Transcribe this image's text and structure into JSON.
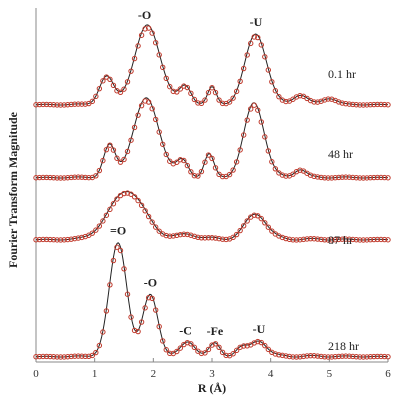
{
  "chart_data": {
    "type": "line",
    "xlabel": "R (Å)",
    "ylabel": "Fourier  Transform  Magnitude",
    "xlim": [
      0,
      6
    ],
    "x_ticks": [
      "0",
      "1",
      "2",
      "3",
      "4",
      "5",
      "6"
    ],
    "grid": false,
    "legend": "none",
    "colors": {
      "fit": "#222222",
      "data": "#c0392b"
    },
    "series": [
      {
        "name": "0.1 hr",
        "peaks": [
          {
            "r": 1.2,
            "amp": 0.35,
            "w": 0.12
          },
          {
            "r": 1.9,
            "amp": 1.0,
            "w": 0.22
          },
          {
            "r": 2.55,
            "amp": 0.22,
            "w": 0.1
          },
          {
            "r": 3.0,
            "amp": 0.2,
            "w": 0.07
          },
          {
            "r": 3.75,
            "amp": 0.9,
            "w": 0.18
          },
          {
            "r": 4.5,
            "amp": 0.12,
            "w": 0.12
          },
          {
            "r": 5.0,
            "amp": 0.08,
            "w": 0.12
          }
        ],
        "annotations": [
          {
            "text": "-O",
            "r": 1.85
          },
          {
            "text": "-U",
            "r": 3.75
          }
        ]
      },
      {
        "name": "48 hr",
        "peaks": [
          {
            "r": 1.25,
            "amp": 0.4,
            "w": 0.1
          },
          {
            "r": 1.88,
            "amp": 1.0,
            "w": 0.22
          },
          {
            "r": 2.5,
            "amp": 0.2,
            "w": 0.1
          },
          {
            "r": 2.95,
            "amp": 0.28,
            "w": 0.08
          },
          {
            "r": 3.72,
            "amp": 0.95,
            "w": 0.17
          },
          {
            "r": 4.5,
            "amp": 0.1,
            "w": 0.1
          }
        ],
        "annotations": []
      },
      {
        "name": "87 hr",
        "peaks": [
          {
            "r": 1.55,
            "amp": 0.62,
            "w": 0.3
          },
          {
            "r": 2.6,
            "amp": 0.06,
            "w": 0.15
          },
          {
            "r": 3.75,
            "amp": 0.32,
            "w": 0.18
          }
        ],
        "annotations": []
      },
      {
        "name": "218 hr",
        "peaks": [
          {
            "r": 1.4,
            "amp": 1.45,
            "w": 0.15
          },
          {
            "r": 1.95,
            "amp": 0.78,
            "w": 0.13
          },
          {
            "r": 2.6,
            "amp": 0.18,
            "w": 0.12
          },
          {
            "r": 3.05,
            "amp": 0.15,
            "w": 0.09
          },
          {
            "r": 3.5,
            "amp": 0.1,
            "w": 0.1
          },
          {
            "r": 3.8,
            "amp": 0.2,
            "w": 0.13
          }
        ],
        "annotations": [
          {
            "text": "=O",
            "r": 1.4
          },
          {
            "text": "-O",
            "r": 1.95
          },
          {
            "text": "-C",
            "r": 2.55
          },
          {
            "text": "-Fe",
            "r": 3.05
          },
          {
            "text": "-U",
            "r": 3.8
          }
        ]
      }
    ]
  }
}
